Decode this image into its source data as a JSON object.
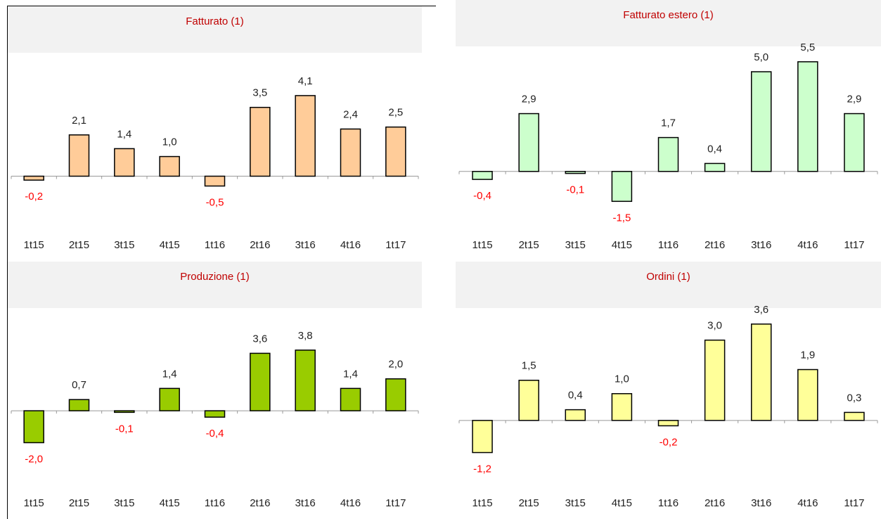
{
  "chart_data": [
    {
      "type": "bar",
      "title": "Fatturato (1)",
      "categories": [
        "1t15",
        "2t15",
        "3t15",
        "4t15",
        "1t16",
        "2t16",
        "3t16",
        "4t16",
        "1t17"
      ],
      "values": [
        -0.2,
        2.1,
        1.4,
        1.0,
        -0.5,
        3.5,
        4.1,
        2.4,
        2.5
      ],
      "value_labels": [
        "-0,2",
        "2,1",
        "1,4",
        "1,0",
        "-0,5",
        "3,5",
        "4,1",
        "2,4",
        "2,5"
      ],
      "color": "#ffcc99",
      "negative_label_color": "#ff0000",
      "ylim": [
        -2.7,
        5.6
      ]
    },
    {
      "type": "bar",
      "title": "Fatturato estero (1)",
      "categories": [
        "1t15",
        "2t15",
        "3t15",
        "4t15",
        "1t16",
        "2t16",
        "3t16",
        "4t16",
        "1t17"
      ],
      "values": [
        -0.4,
        2.9,
        -0.1,
        -1.5,
        1.7,
        0.4,
        5.0,
        5.5,
        2.9
      ],
      "value_labels": [
        "-0,4",
        "2,9",
        "-0,1",
        "-1,5",
        "1,7",
        "0,4",
        "5,0",
        "5,5",
        "2,9"
      ],
      "color": "#ccffcc",
      "negative_label_color": "#ff0000",
      "ylim": [
        -2.9,
        5.6
      ]
    },
    {
      "type": "bar",
      "title": "Produzione (1)",
      "categories": [
        "1t15",
        "2t15",
        "3t15",
        "4t15",
        "1t16",
        "2t16",
        "3t16",
        "4t16",
        "1t17"
      ],
      "values": [
        -2.0,
        0.7,
        -0.1,
        1.4,
        -0.4,
        3.6,
        3.8,
        1.4,
        2.0
      ],
      "value_labels": [
        "-2,0",
        "0,7",
        "-0,1",
        "1,4",
        "-0,4",
        "3,6",
        "3,8",
        "1,4",
        "2,0"
      ],
      "color": "#99cc00",
      "negative_label_color": "#ff0000",
      "ylim": [
        -4.8,
        5.6
      ]
    },
    {
      "type": "bar",
      "title": "Ordini (1)",
      "categories": [
        "1t15",
        "2t15",
        "3t15",
        "4t15",
        "1t16",
        "2t16",
        "3t16",
        "4t16",
        "1t17"
      ],
      "values": [
        -1.2,
        1.5,
        0.4,
        1.0,
        -0.2,
        3.0,
        3.6,
        1.9,
        0.3
      ],
      "value_labels": [
        "-1,2",
        "1,5",
        "0,4",
        "1,0",
        "-0,2",
        "3,0",
        "3,6",
        "1,9",
        "0,3"
      ],
      "color": "#ffff99",
      "negative_label_color": "#ff0000",
      "ylim": [
        -2.5,
        3.7
      ]
    }
  ]
}
